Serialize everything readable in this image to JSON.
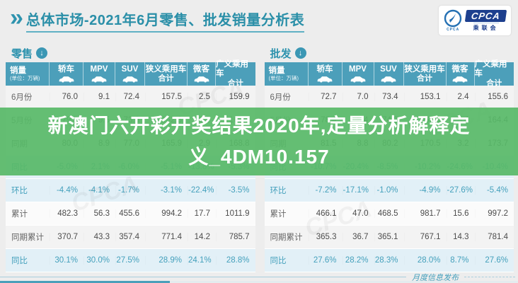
{
  "header": {
    "title": "总体市场-2021年6月零售、批发销量分析表",
    "logo": {
      "brand": "CPCA",
      "sub": "乘联会",
      "emblem_caption": "CPCA"
    }
  },
  "icons": {
    "chevron": "»",
    "section_arrow": "↓"
  },
  "banner": {
    "lines": [
      "新澳门六开彩开奖结果2020年,定量分析解释定",
      "义_4DM10.157"
    ],
    "bg_color": "#58b968",
    "text_color": "#ffffff"
  },
  "columns": [
    {
      "key": "xiaoliang",
      "label": "销量",
      "sub": "(单位：万辆)",
      "icon": null
    },
    {
      "key": "jiaoche",
      "label": "轿车",
      "icon": "sedan-car-icon"
    },
    {
      "key": "mpv",
      "label": "MPV",
      "icon": "mpv-car-icon"
    },
    {
      "key": "suv",
      "label": "SUV",
      "icon": "suv-car-icon"
    },
    {
      "key": "xiayi",
      "label": "狭义乘用车",
      "label2": "合计",
      "icon": null
    },
    {
      "key": "weike",
      "label": "微客",
      "icon": "microvan-icon"
    },
    {
      "key": "guangyi",
      "label": "广义乘用车",
      "label2": "合计",
      "icon": null
    }
  ],
  "chart_data": [
    {
      "type": "table",
      "title": "零售",
      "columns": [
        "销量(单位：万辆)",
        "轿车",
        "MPV",
        "SUV",
        "狭义乘用车合计",
        "微客",
        "广义乘用车合计"
      ],
      "rows": [
        {
          "label": "6月份",
          "kind": "gray",
          "values": [
            "76.0",
            "9.1",
            "72.4",
            "157.5",
            "2.5",
            "159.9"
          ]
        },
        {
          "label": "5月份",
          "kind": "white",
          "values": [
            "79.5",
            "9.5",
            "73.6",
            "162.6",
            "3.2",
            "165.7"
          ]
        },
        {
          "label": "同期",
          "kind": "gray",
          "values": [
            "80.0",
            "8.9",
            "77.0",
            "165.9",
            "2.9",
            "168.8"
          ]
        },
        {
          "label": "同比",
          "kind": "blue",
          "values": [
            "-5.0%",
            "2.1%",
            "-6.0%",
            "-5.1%",
            "-13.8%",
            "-5.3%"
          ]
        },
        {
          "label": "环比",
          "kind": "blue",
          "values": [
            "-4.4%",
            "-4.1%",
            "-1.7%",
            "-3.1%",
            "-22.4%",
            "-3.5%"
          ]
        },
        {
          "label": "累计",
          "kind": "white",
          "values": [
            "482.3",
            "56.3",
            "455.6",
            "994.2",
            "17.7",
            "1011.9"
          ]
        },
        {
          "label": "同期累计",
          "kind": "gray",
          "values": [
            "370.7",
            "43.3",
            "357.4",
            "771.4",
            "14.2",
            "785.7"
          ]
        },
        {
          "label": "同比",
          "kind": "blue",
          "values": [
            "30.1%",
            "30.0%",
            "27.5%",
            "28.9%",
            "24.1%",
            "28.8%"
          ]
        }
      ]
    },
    {
      "type": "table",
      "title": "批发",
      "columns": [
        "销量(单位：万辆)",
        "轿车",
        "MPV",
        "SUV",
        "狭义乘用车合计",
        "微客",
        "广义乘用车合计"
      ],
      "rows": [
        {
          "label": "6月份",
          "kind": "gray",
          "values": [
            "72.7",
            "7.0",
            "73.4",
            "153.1",
            "2.4",
            "155.6"
          ]
        },
        {
          "label": "5月份",
          "kind": "white",
          "values": [
            "78.4",
            "8.4",
            "74.2",
            "161.0",
            "3.4",
            "164.4"
          ]
        },
        {
          "label": "同期",
          "kind": "gray",
          "values": [
            "81.5",
            "8.8",
            "80.2",
            "170.5",
            "3.2",
            "173.7"
          ]
        },
        {
          "label": "同比",
          "kind": "blue",
          "values": [
            "-10.7%",
            "-20.4%",
            "-8.5%",
            "-10.2%",
            "-24.6%",
            "-10.4%"
          ]
        },
        {
          "label": "环比",
          "kind": "blue",
          "values": [
            "-7.2%",
            "-17.1%",
            "-1.0%",
            "-4.9%",
            "-27.6%",
            "-5.4%"
          ]
        },
        {
          "label": "累计",
          "kind": "white",
          "values": [
            "466.1",
            "47.0",
            "468.5",
            "981.7",
            "15.6",
            "997.2"
          ]
        },
        {
          "label": "同期累计",
          "kind": "gray",
          "values": [
            "365.3",
            "36.7",
            "365.1",
            "767.1",
            "14.3",
            "781.4"
          ]
        },
        {
          "label": "同比",
          "kind": "blue",
          "values": [
            "27.6%",
            "28.2%",
            "28.3%",
            "28.0%",
            "8.7%",
            "27.6%"
          ]
        }
      ]
    }
  ],
  "footer": {
    "note": "月度信息发布"
  },
  "watermark": "CPCA",
  "colors": {
    "accent_teal": "#4c9fba",
    "title_teal": "#2a8fa8",
    "banner_green": "#58b968",
    "pct_row_bg": "#e2f0f7",
    "logo_navy": "#1d3f8e",
    "page_bg": "#ededed"
  }
}
